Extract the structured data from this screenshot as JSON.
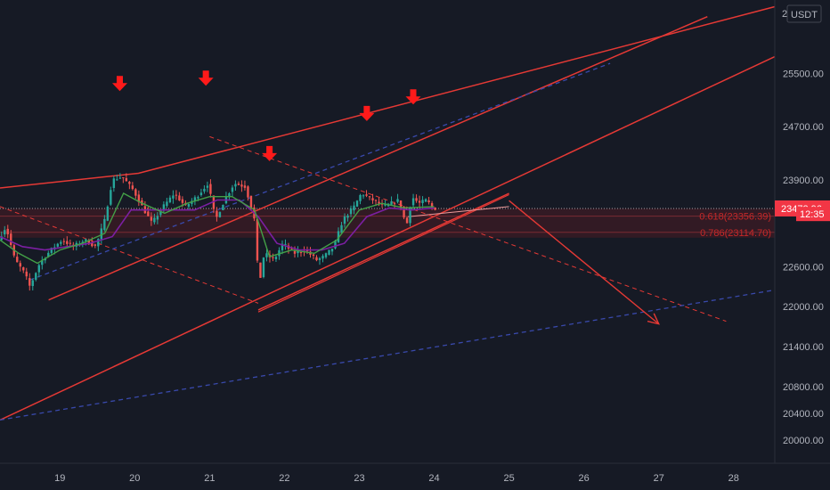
{
  "chart_data": {
    "type": "line",
    "title": "",
    "xlabel": "",
    "ylabel": "",
    "currency": "USDT",
    "y_tick_partial": "2",
    "x_ticks": [
      {
        "day": 19,
        "label": "19"
      },
      {
        "day": 20,
        "label": "20"
      },
      {
        "day": 21,
        "label": "21"
      },
      {
        "day": 22,
        "label": "22"
      },
      {
        "day": 23,
        "label": "23"
      },
      {
        "day": 24,
        "label": "24"
      },
      {
        "day": 25,
        "label": "25"
      },
      {
        "day": 26,
        "label": "26"
      },
      {
        "day": 27,
        "label": "27"
      },
      {
        "day": 28,
        "label": "28"
      }
    ],
    "y_ticks": [
      {
        "value": 25500,
        "label": "25500.00"
      },
      {
        "value": 24700,
        "label": "24700.00"
      },
      {
        "value": 23900,
        "label": "23900.00"
      },
      {
        "value": 22600,
        "label": "22600.00"
      },
      {
        "value": 22000,
        "label": "22000.00"
      },
      {
        "value": 21400,
        "label": "21400.00"
      },
      {
        "value": 20800,
        "label": "20800.00"
      },
      {
        "value": 20400,
        "label": "20400.00"
      },
      {
        "value": 20000,
        "label": "20000.00"
      }
    ],
    "xlim": [
      18.2,
      28.55
    ],
    "ylim": [
      19650,
      26600
    ],
    "last_price": {
      "value": 23472.96,
      "label": "23472.96"
    },
    "countdown": {
      "value": 23390,
      "label": "12:35"
    },
    "fib_levels": [
      {
        "ratio": "0.618",
        "value": 23356.39,
        "label": "0.618(23356.39)"
      },
      {
        "ratio": "0.786",
        "value": 23114.7,
        "label": "0.786(23114.70)"
      }
    ],
    "price_points": [
      [
        18.2,
        23000
      ],
      [
        18.3,
        23200
      ],
      [
        18.42,
        22700
      ],
      [
        18.55,
        22500
      ],
      [
        18.62,
        22300
      ],
      [
        18.75,
        22650
      ],
      [
        18.9,
        22850
      ],
      [
        19.05,
        23000
      ],
      [
        19.2,
        22900
      ],
      [
        19.35,
        23000
      ],
      [
        19.5,
        22900
      ],
      [
        19.62,
        23300
      ],
      [
        19.72,
        23900
      ],
      [
        19.85,
        23950
      ],
      [
        20.0,
        23750
      ],
      [
        20.12,
        23500
      ],
      [
        20.25,
        23250
      ],
      [
        20.4,
        23500
      ],
      [
        20.55,
        23700
      ],
      [
        20.7,
        23500
      ],
      [
        20.85,
        23650
      ],
      [
        21.0,
        23850
      ],
      [
        21.1,
        23300
      ],
      [
        21.22,
        23600
      ],
      [
        21.35,
        23850
      ],
      [
        21.5,
        23800
      ],
      [
        21.62,
        23300
      ],
      [
        21.68,
        22300
      ],
      [
        21.75,
        22800
      ],
      [
        21.88,
        22700
      ],
      [
        22.0,
        22950
      ],
      [
        22.15,
        22800
      ],
      [
        22.3,
        22850
      ],
      [
        22.45,
        22700
      ],
      [
        22.55,
        22750
      ],
      [
        22.68,
        22900
      ],
      [
        22.8,
        23300
      ],
      [
        22.95,
        23500
      ],
      [
        23.05,
        23700
      ],
      [
        23.2,
        23600
      ],
      [
        23.35,
        23500
      ],
      [
        23.45,
        23550
      ],
      [
        23.55,
        23600
      ],
      [
        23.65,
        23200
      ],
      [
        23.72,
        23650
      ],
      [
        23.82,
        23550
      ],
      [
        23.92,
        23600
      ],
      [
        24.0,
        23473
      ]
    ],
    "ma_fast": [
      [
        18.2,
        23000
      ],
      [
        18.45,
        22800
      ],
      [
        18.7,
        22650
      ],
      [
        19.0,
        22850
      ],
      [
        19.3,
        22950
      ],
      [
        19.6,
        23100
      ],
      [
        19.85,
        23700
      ],
      [
        20.1,
        23550
      ],
      [
        20.4,
        23400
      ],
      [
        20.7,
        23550
      ],
      [
        21.0,
        23650
      ],
      [
        21.3,
        23650
      ],
      [
        21.6,
        23450
      ],
      [
        21.8,
        22750
      ],
      [
        22.1,
        22850
      ],
      [
        22.4,
        22800
      ],
      [
        22.7,
        23000
      ],
      [
        23.0,
        23450
      ],
      [
        23.3,
        23550
      ],
      [
        23.6,
        23480
      ],
      [
        24.0,
        23500
      ]
    ],
    "ma_slow": [
      [
        18.2,
        23050
      ],
      [
        18.5,
        22900
      ],
      [
        18.8,
        22850
      ],
      [
        19.1,
        22900
      ],
      [
        19.4,
        22950
      ],
      [
        19.7,
        23050
      ],
      [
        19.95,
        23450
      ],
      [
        20.2,
        23450
      ],
      [
        20.5,
        23450
      ],
      [
        20.8,
        23450
      ],
      [
        21.1,
        23600
      ],
      [
        21.4,
        23600
      ],
      [
        21.65,
        23350
      ],
      [
        21.9,
        22950
      ],
      [
        22.2,
        22850
      ],
      [
        22.5,
        22850
      ],
      [
        22.8,
        22950
      ],
      [
        23.1,
        23350
      ],
      [
        23.4,
        23480
      ],
      [
        23.7,
        23450
      ],
      [
        24.0,
        23480
      ]
    ],
    "trendlines": [
      {
        "color": "#e53935",
        "dash": false,
        "width": 1.5,
        "points": [
          [
            18.2,
            23780
          ],
          [
            20.05,
            24000
          ],
          [
            28.55,
            26500
          ]
        ]
      },
      {
        "color": "#e53935",
        "dash": false,
        "width": 1.5,
        "points": [
          [
            18.85,
            22100
          ],
          [
            27.65,
            26350
          ]
        ]
      },
      {
        "color": "#e53935",
        "dash": false,
        "width": 1.5,
        "points": [
          [
            18.2,
            20300
          ],
          [
            28.55,
            25750
          ]
        ]
      },
      {
        "color": "#e53935",
        "dash": false,
        "width": 1.5,
        "points": [
          [
            21.65,
            21950
          ],
          [
            25.0,
            23700
          ]
        ]
      },
      {
        "color": "#e53935",
        "dash": false,
        "width": 1.2,
        "points": [
          [
            21.65,
            21920
          ],
          [
            25.0,
            23680
          ]
        ]
      },
      {
        "color": "#ef9a9a",
        "dash": false,
        "width": 1,
        "points": [
          [
            23.65,
            23350
          ],
          [
            25.0,
            23500
          ]
        ]
      },
      {
        "color": "#e53935",
        "dash": true,
        "width": 1,
        "points": [
          [
            18.2,
            23500
          ],
          [
            21.65,
            22050
          ]
        ]
      },
      {
        "color": "#e53935",
        "dash": true,
        "width": 1,
        "points": [
          [
            21.0,
            24550
          ],
          [
            27.9,
            21780
          ]
        ]
      },
      {
        "color": "#3949ab",
        "dash": true,
        "width": 1.3,
        "points": [
          [
            18.6,
            22400
          ],
          [
            26.35,
            25650
          ]
        ]
      },
      {
        "color": "#3949ab",
        "dash": true,
        "width": 1.3,
        "points": [
          [
            18.2,
            20300
          ],
          [
            28.55,
            22250
          ]
        ]
      }
    ],
    "projection_arrow": {
      "from": [
        25.0,
        23590
      ],
      "to": [
        27.0,
        21740
      ]
    },
    "peak_markers": [
      {
        "x": 19.8,
        "y": 25300
      },
      {
        "x": 20.95,
        "y": 25380
      },
      {
        "x": 21.8,
        "y": 24250
      },
      {
        "x": 23.1,
        "y": 24850
      },
      {
        "x": 23.72,
        "y": 25100
      }
    ],
    "colors": {
      "background": "#161a25",
      "up": "#26a69a",
      "down": "#ef5350",
      "ma_fast": "#43a047",
      "ma_slow": "#7b1fa2",
      "fib_band": "#4a1c24",
      "price_tag": "#f23645",
      "axis_text": "#b2b5be"
    }
  }
}
